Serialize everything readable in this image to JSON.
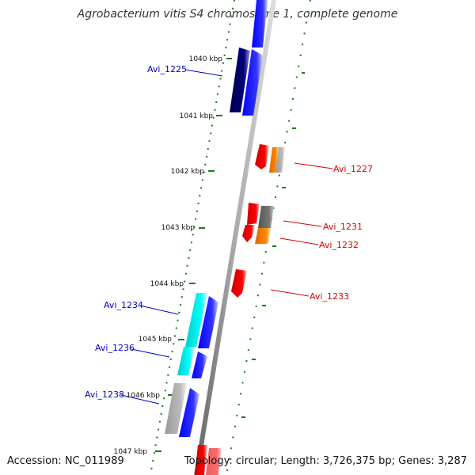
{
  "title": "Agrobacterium vitis S4 chromosome 1, complete genome",
  "footer": {
    "accession": "Accession: NC_011989",
    "summary": "Topology: circular; Length: 3,726,375 bp; Genes: 3,287"
  },
  "ticks": [
    "1040 kbp",
    "1041 kbp",
    "1042 kbp",
    "1043 kbp",
    "1044 kbp",
    "1045 kbp",
    "1046 kbp",
    "1047 kbp"
  ],
  "gene_labels": [
    {
      "text": "Avi_1225",
      "strand": "minus",
      "color": "#0000cc"
    },
    {
      "text": "Avi_1227",
      "strand": "plus",
      "color": "#dd0000"
    },
    {
      "text": "Avi_1231",
      "strand": "plus",
      "color": "#dd0000"
    },
    {
      "text": "Avi_1232",
      "strand": "plus",
      "color": "#dd0000"
    },
    {
      "text": "Avi_1233",
      "strand": "plus",
      "color": "#dd0000"
    },
    {
      "text": "Avi_1234",
      "strand": "minus",
      "color": "#0000cc"
    },
    {
      "text": "Avi_1236",
      "strand": "minus",
      "color": "#0000cc"
    },
    {
      "text": "Avi_1238",
      "strand": "minus",
      "color": "#0000cc"
    }
  ],
  "colors": {
    "backbone": "#888888",
    "tick": "#1a7a1a",
    "cds_minus": "#0000ee",
    "cds_plus": "#ee0000",
    "rna": "#00e0e0",
    "pseudo": "#aaaaaa",
    "dark": "#000066",
    "orange": "#ff8800",
    "grey": "#777777"
  }
}
